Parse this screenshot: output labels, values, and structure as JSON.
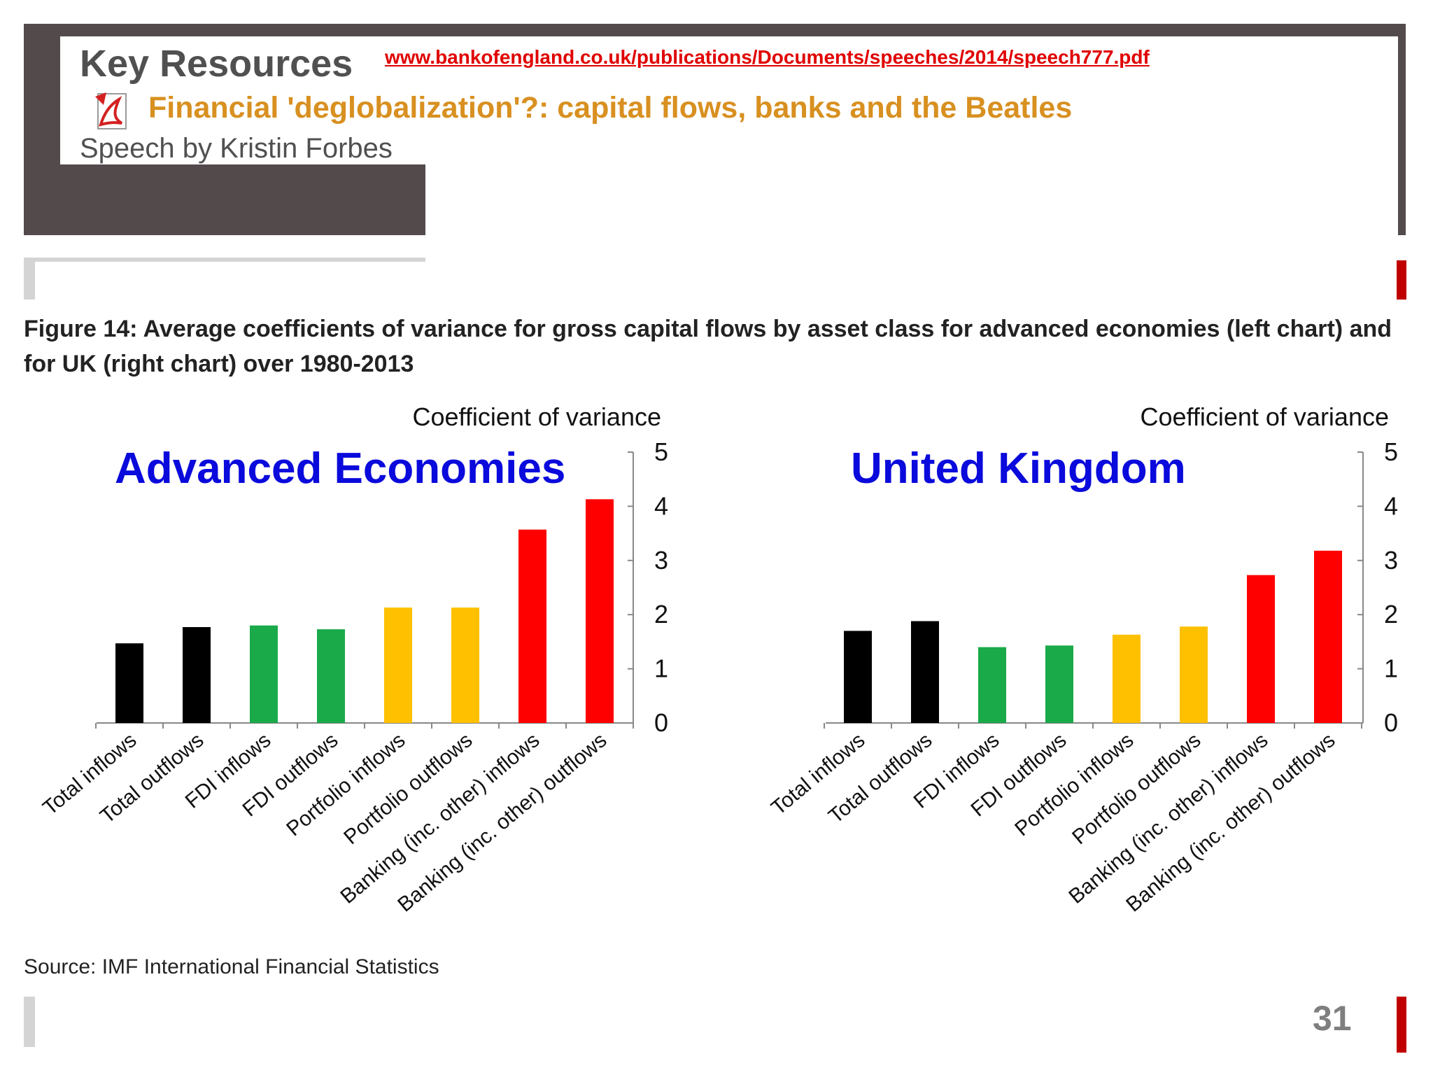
{
  "header": {
    "key_resources": "Key Resources",
    "url": "www.bankofengland.co.uk/publications/Documents/speeches/2014/speech777.pdf",
    "speech_title": "Financial 'deglobalization'?: capital flows, banks and the Beatles",
    "speech_by": "Speech by Kristin Forbes",
    "pdf_icon": "pdf-icon"
  },
  "figure_title": "Figure 14: Average coefficients of variance for gross capital flows by asset class for advanced economies (left chart) and for UK (right chart) over 1980-2013",
  "source": "Source: IMF International Financial Statistics",
  "page_number": "31",
  "colors": {
    "frame": "#524a4b",
    "title_blue": "#0a0adc",
    "black": "#000000",
    "green": "#1aaa4a",
    "amber": "#ffc000",
    "red": "#ff0000",
    "accent_red": "#c00000"
  },
  "chart_data": [
    {
      "type": "bar",
      "title": "Advanced Economies",
      "ylabel": "Coefficient  of variance",
      "ylim": [
        0,
        5
      ],
      "yticks": [
        "0",
        "1",
        "2",
        "3",
        "4",
        "5"
      ],
      "categories": [
        "Total inflows",
        "Total outflows",
        "FDI inflows",
        "FDI outflows",
        "Portfolio inflows",
        "Portfolio outflows",
        "Banking (inc. other) inflows",
        "Banking (inc. other) outflows"
      ],
      "values": [
        1.47,
        1.77,
        1.8,
        1.73,
        2.13,
        2.13,
        3.57,
        4.13
      ],
      "bar_colors": [
        "#000000",
        "#000000",
        "#1aaa4a",
        "#1aaa4a",
        "#ffc000",
        "#ffc000",
        "#ff0000",
        "#ff0000"
      ],
      "grid": false,
      "y_axis_side": "right"
    },
    {
      "type": "bar",
      "title": "United Kingdom",
      "ylabel": "Coefficient  of variance",
      "ylim": [
        0,
        5
      ],
      "yticks": [
        "0",
        "1",
        "2",
        "3",
        "4",
        "5"
      ],
      "categories": [
        "Total inflows",
        "Total outflows",
        "FDI inflows",
        "FDI outflows",
        "Portfolio inflows",
        "Portfolio outflows",
        "Banking (inc. other) inflows",
        "Banking (inc. other) outflows"
      ],
      "values": [
        1.7,
        1.88,
        1.4,
        1.43,
        1.63,
        1.78,
        2.73,
        3.18
      ],
      "bar_colors": [
        "#000000",
        "#000000",
        "#1aaa4a",
        "#1aaa4a",
        "#ffc000",
        "#ffc000",
        "#ff0000",
        "#ff0000"
      ],
      "grid": false,
      "y_axis_side": "right"
    }
  ]
}
